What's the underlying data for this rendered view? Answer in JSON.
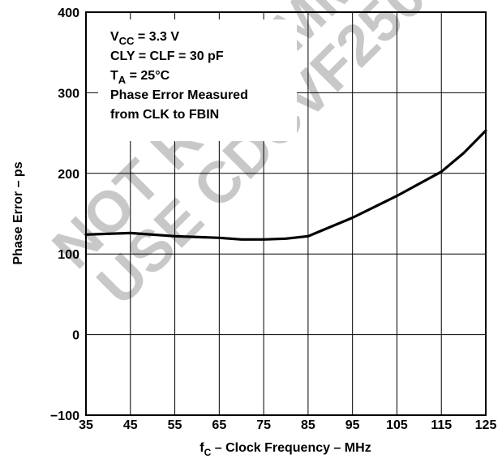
{
  "chart_data": {
    "type": "line",
    "xlabel": {
      "main": "f",
      "sub": "C",
      "rest": " – Clock Frequency – MHz"
    },
    "ylabel": "Phase Error – ps",
    "xlim": [
      35,
      125
    ],
    "ylim": [
      -100,
      400
    ],
    "x_ticks": [
      "35",
      "45",
      "55",
      "65",
      "75",
      "85",
      "95",
      "105",
      "115",
      "125"
    ],
    "y_ticks": [
      "−100",
      "0",
      "100",
      "200",
      "300",
      "400"
    ],
    "grid": true,
    "series": [
      {
        "x": [
          35,
          45,
          55,
          65,
          70,
          75,
          80,
          85,
          95,
          105,
          115,
          120,
          125
        ],
        "y": [
          124,
          126,
          122,
          120,
          118,
          118,
          119,
          122,
          145,
          172,
          202,
          225,
          253
        ]
      }
    ],
    "annotations": [
      {
        "main": "V",
        "sub": "CC",
        "rest": " = 3.3 V"
      },
      {
        "main": "CLY = CLF = 30 pF",
        "sub": "",
        "rest": ""
      },
      {
        "main": "T",
        "sub": "A",
        "rest": " = 25°C"
      },
      {
        "main": "Phase Error Measured",
        "sub": "",
        "rest": ""
      },
      {
        "main": "from CLK to FBIN",
        "sub": "",
        "rest": ""
      }
    ],
    "watermark": [
      "NOT RECOMMENDED",
      "USE CDCVF2505"
    ]
  },
  "colors": {
    "line": "#000000",
    "grid": "#000000",
    "watermark": "#c8c8c8",
    "background": "#ffffff"
  }
}
